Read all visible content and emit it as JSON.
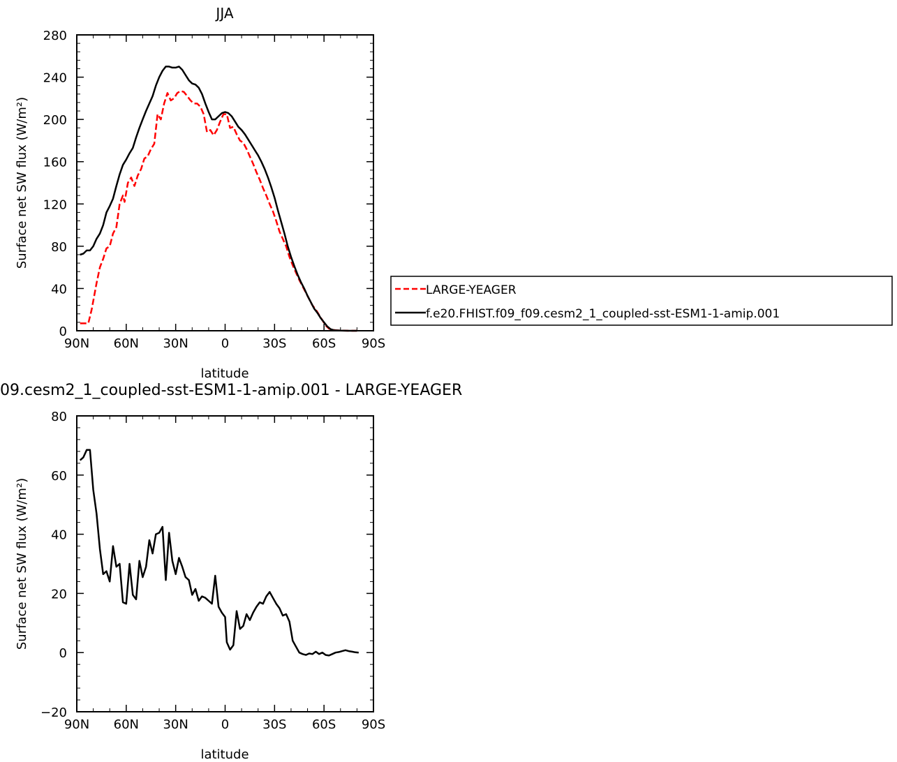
{
  "chart_data": [
    {
      "type": "line",
      "title": "JJA",
      "xlabel": "latitude",
      "ylabel": "Surface net SW flux (W/m²)",
      "xlim": [
        90,
        -90
      ],
      "ylim": [
        0,
        280
      ],
      "x_ticks": [
        90,
        60,
        30,
        0,
        -30,
        -60,
        -90
      ],
      "x_tick_labels": [
        "90N",
        "60N",
        "30N",
        "0",
        "30S",
        "60S",
        "90S"
      ],
      "y_ticks": [
        0,
        40,
        80,
        120,
        160,
        200,
        240,
        280
      ],
      "y_tick_labels": [
        "0",
        "40",
        "80",
        "120",
        "160",
        "200",
        "240",
        "280"
      ],
      "legend_position": "right",
      "series": [
        {
          "name": "LARGE-YEAGER",
          "color": "#ff0000",
          "dash": "dashed",
          "points": [
            [
              88,
              7
            ],
            [
              83,
              7
            ],
            [
              81,
              20
            ],
            [
              78,
              45
            ],
            [
              76,
              60
            ],
            [
              74,
              68
            ],
            [
              72,
              78
            ],
            [
              70,
              80
            ],
            [
              68,
              92
            ],
            [
              66,
              98
            ],
            [
              64,
              120
            ],
            [
              62,
              128
            ],
            [
              61,
              122
            ],
            [
              59,
              140
            ],
            [
              57,
              145
            ],
            [
              55,
              137
            ],
            [
              53,
              147
            ],
            [
              51,
              153
            ],
            [
              49,
              163
            ],
            [
              47,
              165
            ],
            [
              45,
              172
            ],
            [
              43,
              177
            ],
            [
              41,
              205
            ],
            [
              39,
              200
            ],
            [
              37,
              215
            ],
            [
              35,
              225
            ],
            [
              33,
              218
            ],
            [
              31,
              220
            ],
            [
              29,
              225
            ],
            [
              27,
              227
            ],
            [
              25,
              226
            ],
            [
              23,
              222
            ],
            [
              21,
              218
            ],
            [
              19,
              215
            ],
            [
              17,
              215
            ],
            [
              15,
              212
            ],
            [
              13,
              205
            ],
            [
              11,
              188
            ],
            [
              9,
              190
            ],
            [
              7,
              185
            ],
            [
              5,
              190
            ],
            [
              3,
              198
            ],
            [
              1,
              205
            ],
            [
              -1,
              205
            ],
            [
              -3,
              192
            ],
            [
              -5,
              193
            ],
            [
              -7,
              186
            ],
            [
              -9,
              180
            ],
            [
              -11,
              178
            ],
            [
              -13,
              172
            ],
            [
              -15,
              165
            ],
            [
              -17,
              158
            ],
            [
              -19,
              150
            ],
            [
              -21,
              143
            ],
            [
              -23,
              135
            ],
            [
              -25,
              128
            ],
            [
              -27,
              120
            ],
            [
              -29,
              113
            ],
            [
              -31,
              104
            ],
            [
              -33,
              94
            ],
            [
              -35,
              87
            ],
            [
              -37,
              80
            ],
            [
              -39,
              70
            ],
            [
              -41,
              62
            ],
            [
              -43,
              55
            ],
            [
              -45,
              48
            ],
            [
              -47,
              42
            ],
            [
              -49,
              36
            ],
            [
              -51,
              30
            ],
            [
              -53,
              24
            ],
            [
              -55,
              20
            ],
            [
              -57,
              15
            ],
            [
              -59,
              10
            ],
            [
              -61,
              5
            ],
            [
              -63,
              2
            ],
            [
              -65,
              1
            ],
            [
              -67,
              0.5
            ],
            [
              -70,
              0.2
            ],
            [
              -75,
              0
            ],
            [
              -80,
              0
            ]
          ]
        },
        {
          "name": "f.e20.FHIST.f09_f09.cesm2_1_coupled-sst-ESM1-1-amip.001",
          "color": "#000000",
          "dash": "solid",
          "points": [
            [
              88,
              72
            ],
            [
              86,
              73
            ],
            [
              84,
              76
            ],
            [
              82,
              76
            ],
            [
              80,
              80
            ],
            [
              78,
              87
            ],
            [
              76,
              92
            ],
            [
              74,
              100
            ],
            [
              72,
              112
            ],
            [
              70,
              118
            ],
            [
              68,
              125
            ],
            [
              66,
              137
            ],
            [
              64,
              148
            ],
            [
              62,
              157
            ],
            [
              60,
              162
            ],
            [
              58,
              168
            ],
            [
              56,
              173
            ],
            [
              54,
              183
            ],
            [
              52,
              192
            ],
            [
              50,
              200
            ],
            [
              48,
              208
            ],
            [
              46,
              215
            ],
            [
              44,
              222
            ],
            [
              42,
              232
            ],
            [
              40,
              240
            ],
            [
              38,
              246
            ],
            [
              36,
              250
            ],
            [
              34,
              250
            ],
            [
              32,
              249
            ],
            [
              30,
              249
            ],
            [
              28,
              250
            ],
            [
              26,
              247
            ],
            [
              24,
              242
            ],
            [
              22,
              237
            ],
            [
              20,
              234
            ],
            [
              18,
              233
            ],
            [
              16,
              230
            ],
            [
              14,
              224
            ],
            [
              12,
              215
            ],
            [
              10,
              207
            ],
            [
              8,
              200
            ],
            [
              6,
              200
            ],
            [
              4,
              203
            ],
            [
              2,
              206
            ],
            [
              0,
              207
            ],
            [
              -2,
              206
            ],
            [
              -4,
              203
            ],
            [
              -6,
              198
            ],
            [
              -8,
              193
            ],
            [
              -10,
              190
            ],
            [
              -12,
              186
            ],
            [
              -14,
              181
            ],
            [
              -16,
              176
            ],
            [
              -18,
              171
            ],
            [
              -20,
              166
            ],
            [
              -22,
              160
            ],
            [
              -24,
              153
            ],
            [
              -26,
              145
            ],
            [
              -28,
              136
            ],
            [
              -30,
              126
            ],
            [
              -32,
              114
            ],
            [
              -34,
              103
            ],
            [
              -36,
              92
            ],
            [
              -38,
              80
            ],
            [
              -40,
              70
            ],
            [
              -42,
              61
            ],
            [
              -44,
              53
            ],
            [
              -46,
              46
            ],
            [
              -48,
              40
            ],
            [
              -50,
              33
            ],
            [
              -52,
              27
            ],
            [
              -54,
              21
            ],
            [
              -56,
              17
            ],
            [
              -58,
              12
            ],
            [
              -60,
              8
            ],
            [
              -62,
              4
            ],
            [
              -64,
              1.5
            ],
            [
              -66,
              0.5
            ],
            [
              -70,
              0.2
            ],
            [
              -75,
              0
            ],
            [
              -80,
              0
            ]
          ]
        }
      ]
    },
    {
      "type": "line",
      "title": "09.cesm2_1_coupled-sst-ESM1-1-amip.001 - LARGE-YEAGER",
      "xlabel": "latitude",
      "ylabel": "Surface net SW flux (W/m²)",
      "xlim": [
        90,
        -90
      ],
      "ylim": [
        -20,
        80
      ],
      "x_ticks": [
        90,
        60,
        30,
        0,
        -30,
        -60,
        -90
      ],
      "x_tick_labels": [
        "90N",
        "60N",
        "30N",
        "0",
        "30S",
        "60S",
        "90S"
      ],
      "y_ticks": [
        -20,
        0,
        20,
        40,
        60,
        80
      ],
      "y_tick_labels": [
        "-20",
        "0",
        "20",
        "40",
        "60",
        "80"
      ],
      "series": [
        {
          "color": "#000000",
          "points": [
            [
              88,
              65
            ],
            [
              86,
              66
            ],
            [
              84,
              68.5
            ],
            [
              82,
              68.5
            ],
            [
              80,
              55
            ],
            [
              78,
              47
            ],
            [
              76,
              35
            ],
            [
              74,
              26.5
            ],
            [
              72,
              27.5
            ],
            [
              70,
              24
            ],
            [
              68,
              36
            ],
            [
              66,
              29
            ],
            [
              64,
              30
            ],
            [
              62,
              17
            ],
            [
              60,
              16.5
            ],
            [
              58,
              30
            ],
            [
              56,
              19.5
            ],
            [
              54,
              18
            ],
            [
              52,
              31
            ],
            [
              50,
              25.5
            ],
            [
              48,
              29
            ],
            [
              46,
              38
            ],
            [
              44,
              33.5
            ],
            [
              42,
              40
            ],
            [
              40,
              40.5
            ],
            [
              38,
              42.5
            ],
            [
              36,
              24.5
            ],
            [
              34,
              40.5
            ],
            [
              32,
              31
            ],
            [
              30,
              26.5
            ],
            [
              28,
              32
            ],
            [
              26,
              29
            ],
            [
              24,
              25.5
            ],
            [
              22,
              24.5
            ],
            [
              20,
              19.5
            ],
            [
              18,
              21.5
            ],
            [
              16,
              17.5
            ],
            [
              14,
              19
            ],
            [
              12,
              18.5
            ],
            [
              10,
              17.5
            ],
            [
              8,
              16.5
            ],
            [
              6,
              26
            ],
            [
              4,
              15.5
            ],
            [
              2,
              13.5
            ],
            [
              0,
              12
            ],
            [
              -1,
              3.5
            ],
            [
              -3,
              1
            ],
            [
              -5,
              2.5
            ],
            [
              -7,
              14
            ],
            [
              -9,
              8
            ],
            [
              -11,
              9
            ],
            [
              -13,
              13
            ],
            [
              -15,
              11
            ],
            [
              -17,
              13.5
            ],
            [
              -19,
              15.5
            ],
            [
              -21,
              17
            ],
            [
              -23,
              16.5
            ],
            [
              -25,
              19
            ],
            [
              -27,
              20.5
            ],
            [
              -29,
              18.5
            ],
            [
              -31,
              16.5
            ],
            [
              -33,
              15
            ],
            [
              -35,
              12.5
            ],
            [
              -37,
              13
            ],
            [
              -39,
              10.5
            ],
            [
              -41,
              4
            ],
            [
              -43,
              2
            ],
            [
              -45,
              0
            ],
            [
              -47,
              -0.5
            ],
            [
              -49,
              -0.8
            ],
            [
              -51,
              -0.3
            ],
            [
              -53,
              -0.5
            ],
            [
              -55,
              0.3
            ],
            [
              -57,
              -0.5
            ],
            [
              -59,
              0
            ],
            [
              -61,
              -0.8
            ],
            [
              -63,
              -1
            ],
            [
              -65,
              -0.5
            ],
            [
              -67,
              0
            ],
            [
              -69,
              0.2
            ],
            [
              -71,
              0.5
            ],
            [
              -73,
              0.8
            ],
            [
              -75,
              0.5
            ],
            [
              -77,
              0.3
            ],
            [
              -79,
              0.1
            ],
            [
              -81,
              0
            ]
          ]
        }
      ]
    }
  ]
}
